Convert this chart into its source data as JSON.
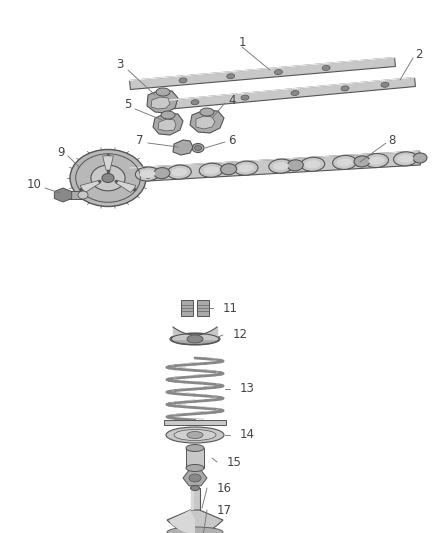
{
  "bg_color": "#ffffff",
  "line_color": "#555555",
  "gray1": "#c8c8c8",
  "gray2": "#aaaaaa",
  "gray3": "#888888",
  "label_color": "#444444",
  "label_fontsize": 8.5,
  "figw": 4.38,
  "figh": 5.33,
  "dpi": 100
}
